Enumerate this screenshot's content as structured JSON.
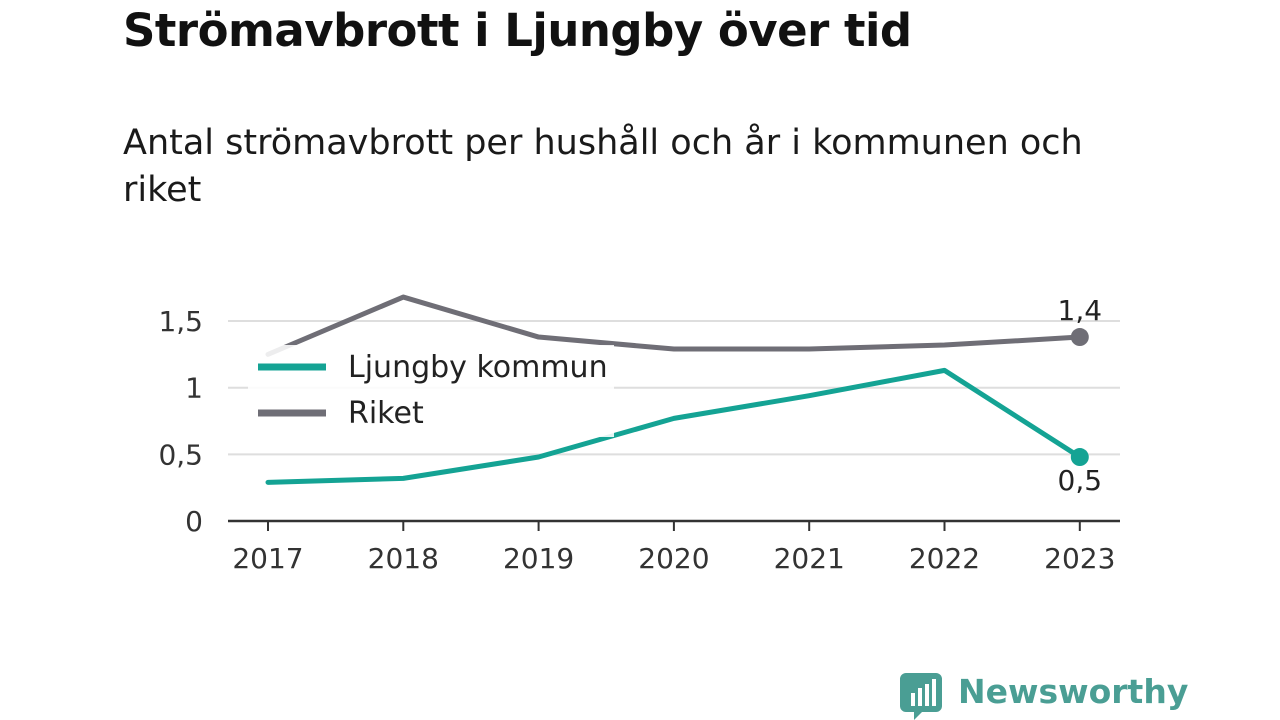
{
  "title": "Strömavbrott i Ljungby över tid",
  "subtitle": "Antal strömavbrott per hushåll och år i kommunen och riket",
  "brand": {
    "name": "Newsworthy",
    "color": "#4a9e94"
  },
  "chart_data": {
    "type": "line",
    "x": [
      "2017",
      "2018",
      "2019",
      "2020",
      "2021",
      "2022",
      "2023"
    ],
    "series": [
      {
        "name": "Ljungby kommun",
        "color": "#14a394",
        "values": [
          0.29,
          0.32,
          0.48,
          0.77,
          0.94,
          1.13,
          0.48
        ],
        "end_label": "0,5"
      },
      {
        "name": "Riket",
        "color": "#6f6e76",
        "values": [
          1.25,
          1.68,
          1.38,
          1.29,
          1.29,
          1.32,
          1.38
        ],
        "end_label": "1,4"
      }
    ],
    "yticks": [
      {
        "value": 0,
        "label": "0"
      },
      {
        "value": 0.5,
        "label": "0,5"
      },
      {
        "value": 1,
        "label": "1"
      },
      {
        "value": 1.5,
        "label": "1,5"
      }
    ],
    "ylim": [
      0,
      1.7
    ],
    "grid": true,
    "legend_position": "top-left"
  }
}
